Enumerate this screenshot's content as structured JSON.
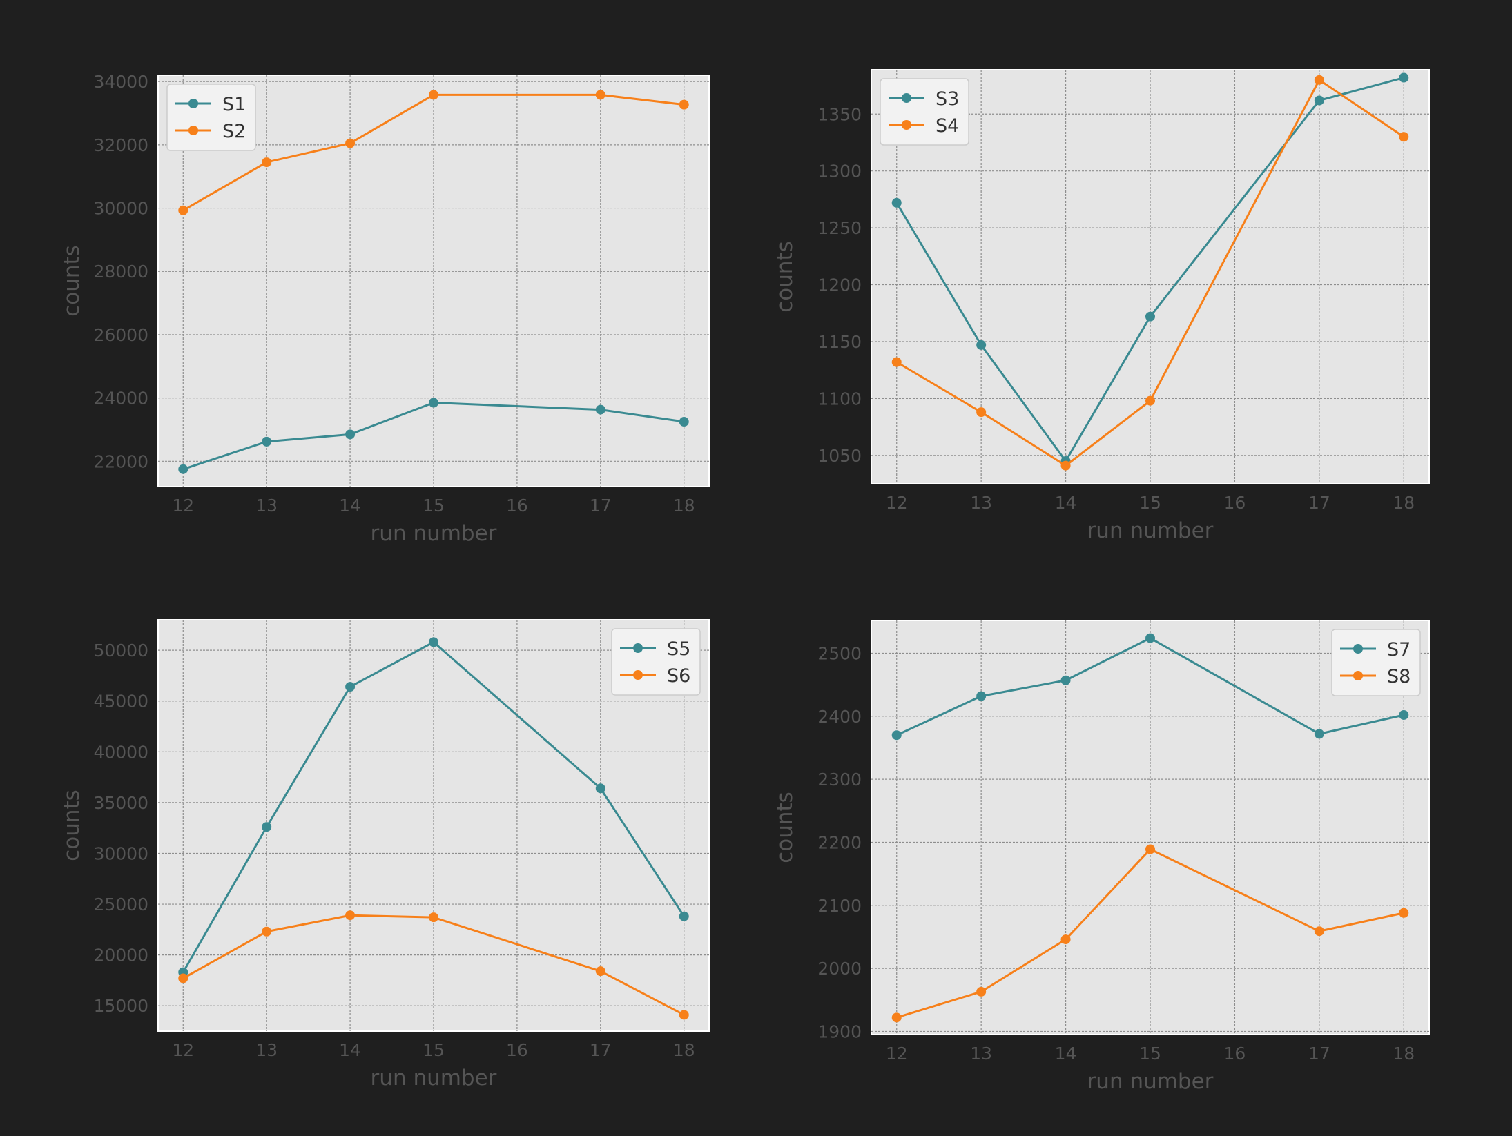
{
  "chart_data": [
    {
      "type": "line",
      "x": [
        12,
        13,
        14,
        15,
        17,
        18
      ],
      "xticks": [
        "12",
        "13",
        "14",
        "15",
        "16",
        "17",
        "18"
      ],
      "xlim": [
        11.7,
        18.3
      ],
      "ylim": [
        21200,
        34200
      ],
      "yticks": [
        "22000",
        "24000",
        "26000",
        "28000",
        "30000",
        "32000",
        "34000"
      ],
      "xlabel": "run number",
      "ylabel": "counts",
      "grid": true,
      "legend_position": "upper-left",
      "series": [
        {
          "name": "S1",
          "color": "#3a8a91",
          "values": [
            21750,
            22620,
            22850,
            23850,
            23630,
            23250
          ]
        },
        {
          "name": "S2",
          "color": "#f7801a",
          "values": [
            29930,
            31450,
            32050,
            33580,
            33580,
            33270
          ]
        }
      ]
    },
    {
      "type": "line",
      "x": [
        12,
        13,
        14,
        15,
        17,
        18
      ],
      "xticks": [
        "12",
        "13",
        "14",
        "15",
        "16",
        "17",
        "18"
      ],
      "xlim": [
        11.7,
        18.3
      ],
      "ylim": [
        1025,
        1389
      ],
      "yticks": [
        "1050",
        "1100",
        "1150",
        "1200",
        "1250",
        "1300",
        "1350"
      ],
      "xlabel": "run number",
      "ylabel": "counts",
      "grid": true,
      "legend_position": "upper-left",
      "series": [
        {
          "name": "S3",
          "color": "#3a8a91",
          "values": [
            1272,
            1147,
            1045,
            1172,
            1362,
            1382
          ]
        },
        {
          "name": "S4",
          "color": "#f7801a",
          "values": [
            1132,
            1088,
            1041,
            1098,
            1380,
            1330
          ]
        }
      ]
    },
    {
      "type": "line",
      "x": [
        12,
        13,
        14,
        15,
        17,
        18
      ],
      "xticks": [
        "12",
        "13",
        "14",
        "15",
        "16",
        "17",
        "18"
      ],
      "xlim": [
        11.7,
        18.3
      ],
      "ylim": [
        12500,
        53000
      ],
      "yticks": [
        "15000",
        "20000",
        "25000",
        "30000",
        "35000",
        "40000",
        "45000",
        "50000"
      ],
      "xlabel": "run number",
      "ylabel": "counts",
      "grid": true,
      "legend_position": "upper-right",
      "series": [
        {
          "name": "S5",
          "color": "#3a8a91",
          "values": [
            18300,
            32600,
            46400,
            50800,
            36400,
            23800
          ]
        },
        {
          "name": "S6",
          "color": "#f7801a",
          "values": [
            17700,
            22300,
            23900,
            23700,
            18400,
            14100
          ]
        }
      ]
    },
    {
      "type": "line",
      "x": [
        12,
        13,
        14,
        15,
        17,
        18
      ],
      "xticks": [
        "12",
        "13",
        "14",
        "15",
        "16",
        "17",
        "18"
      ],
      "xlim": [
        11.7,
        18.3
      ],
      "ylim": [
        1895,
        2552
      ],
      "yticks": [
        "1900",
        "2000",
        "2100",
        "2200",
        "2300",
        "2400",
        "2500"
      ],
      "xlabel": "run number",
      "ylabel": "counts",
      "grid": true,
      "legend_position": "upper-right",
      "series": [
        {
          "name": "S7",
          "color": "#3a8a91",
          "values": [
            2370,
            2432,
            2457,
            2524,
            2372,
            2402
          ]
        },
        {
          "name": "S8",
          "color": "#f7801a",
          "values": [
            1922,
            1963,
            2046,
            2189,
            2059,
            2088
          ]
        }
      ]
    }
  ]
}
